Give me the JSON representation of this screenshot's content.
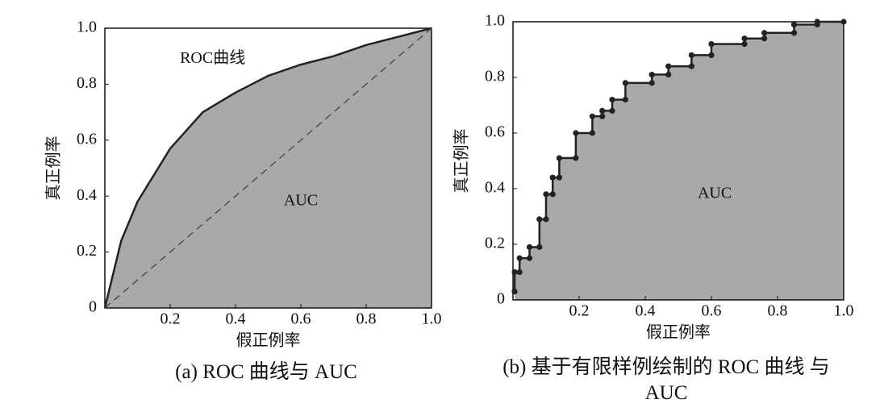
{
  "chart_data": [
    {
      "type": "line",
      "caption": "(a) ROC 曲线与 AUC",
      "xlabel": "假正例率",
      "ylabel": "真正例率",
      "xlim": [
        0,
        1
      ],
      "ylim": [
        0,
        1
      ],
      "xticks": [
        0.2,
        0.4,
        0.6,
        0.8,
        {
          "value": 1,
          "label": "1.0"
        }
      ],
      "yticks": [
        0,
        0.2,
        0.4,
        0.6,
        0.8,
        {
          "value": 1,
          "label": "1.0"
        }
      ],
      "fill_color": "#a9a9a9",
      "series": [
        {
          "color": "#222222",
          "fill": true,
          "markers": false,
          "dashed": false,
          "x": [
            0,
            0.05,
            0.1,
            0.2,
            0.3,
            0.4,
            0.5,
            0.6,
            0.7,
            0.8,
            0.9,
            1
          ],
          "values": [
            0,
            0.24,
            0.38,
            0.57,
            0.7,
            0.77,
            0.83,
            0.87,
            0.9,
            0.94,
            0.97,
            1
          ]
        },
        {
          "color": "#444444",
          "fill": false,
          "markers": false,
          "dashed": true,
          "x": [
            0,
            1
          ],
          "values": [
            0,
            1
          ]
        }
      ],
      "annotations": [
        {
          "text": "ROC曲线",
          "x": 0.33,
          "y": 0.89
        },
        {
          "text": "AUC",
          "x": 0.6,
          "y": 0.38
        }
      ]
    },
    {
      "type": "line",
      "caption": "(b) 基于有限样例绘制的 ROC 曲线 与 AUC",
      "xlabel": "假正例率",
      "ylabel": "真正例率",
      "xlim": [
        0,
        1
      ],
      "ylim": [
        0,
        1
      ],
      "xticks": [
        0.2,
        0.4,
        0.6,
        0.8,
        {
          "value": 1,
          "label": "1.0"
        }
      ],
      "yticks": [
        0,
        0.2,
        0.4,
        0.6,
        0.8,
        {
          "value": 1,
          "label": "1.0"
        }
      ],
      "fill_color": "#a9a9a9",
      "series": [
        {
          "color": "#222222",
          "fill": true,
          "markers": true,
          "dashed": false,
          "x": [
            0.005,
            0.005,
            0.02,
            0.02,
            0.05,
            0.05,
            0.08,
            0.08,
            0.1,
            0.1,
            0.12,
            0.12,
            0.14,
            0.14,
            0.19,
            0.19,
            0.24,
            0.24,
            0.27,
            0.27,
            0.3,
            0.3,
            0.34,
            0.34,
            0.42,
            0.42,
            0.47,
            0.47,
            0.54,
            0.54,
            0.6,
            0.6,
            0.7,
            0.7,
            0.76,
            0.76,
            0.85,
            0.85,
            0.92,
            0.92,
            1
          ],
          "values": [
            0.03,
            0.1,
            0.1,
            0.15,
            0.15,
            0.19,
            0.19,
            0.29,
            0.29,
            0.38,
            0.38,
            0.44,
            0.44,
            0.51,
            0.51,
            0.6,
            0.6,
            0.66,
            0.66,
            0.68,
            0.68,
            0.72,
            0.72,
            0.78,
            0.78,
            0.81,
            0.81,
            0.84,
            0.84,
            0.88,
            0.88,
            0.92,
            0.92,
            0.94,
            0.94,
            0.96,
            0.96,
            0.99,
            0.99,
            1,
            1
          ]
        }
      ],
      "annotations": [
        {
          "text": "AUC",
          "x": 0.61,
          "y": 0.38
        }
      ]
    }
  ]
}
